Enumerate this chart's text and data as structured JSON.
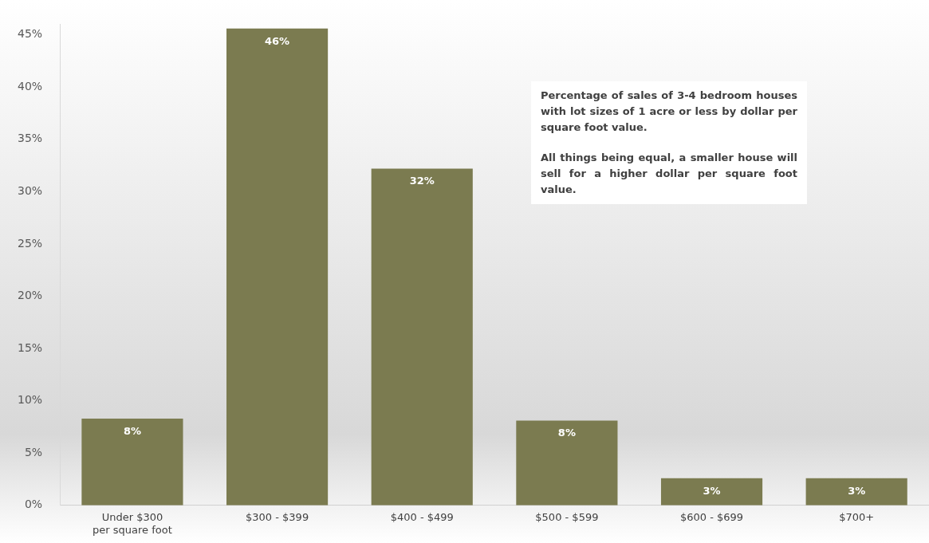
{
  "chart_data": {
    "type": "bar",
    "categories": [
      "Under $300 per square foot",
      "$300 - $399",
      "$400 - $499",
      "$500 - $599",
      "$600 - $699",
      "$700+"
    ],
    "values": [
      8.3,
      45.6,
      32.2,
      8.1,
      2.6,
      2.6
    ],
    "value_labels": [
      "8%",
      "46%",
      "32%",
      "8%",
      "3%",
      "3%"
    ],
    "color": "#7b7b50",
    "ylim": [
      0,
      46
    ],
    "yticks": [
      {
        "value": 0,
        "label": "0%"
      },
      {
        "value": 5,
        "label": "5%"
      },
      {
        "value": 10,
        "label": "10%"
      },
      {
        "value": 15,
        "label": "15%"
      },
      {
        "value": 20,
        "label": "20%"
      },
      {
        "value": 25,
        "label": "25%"
      },
      {
        "value": 30,
        "label": "30%"
      },
      {
        "value": 35,
        "label": "35%"
      },
      {
        "value": 40,
        "label": "40%"
      },
      {
        "value": 45,
        "label": "45%"
      }
    ],
    "grid": false,
    "legend": false,
    "annotations": [
      "Percentage of sales of 3-4 bedroom houses with lot sizes of 1 acre or less by dollar per square foot value.",
      "All things being equal, a smaller house will sell for a higher dollar per square foot value."
    ]
  }
}
